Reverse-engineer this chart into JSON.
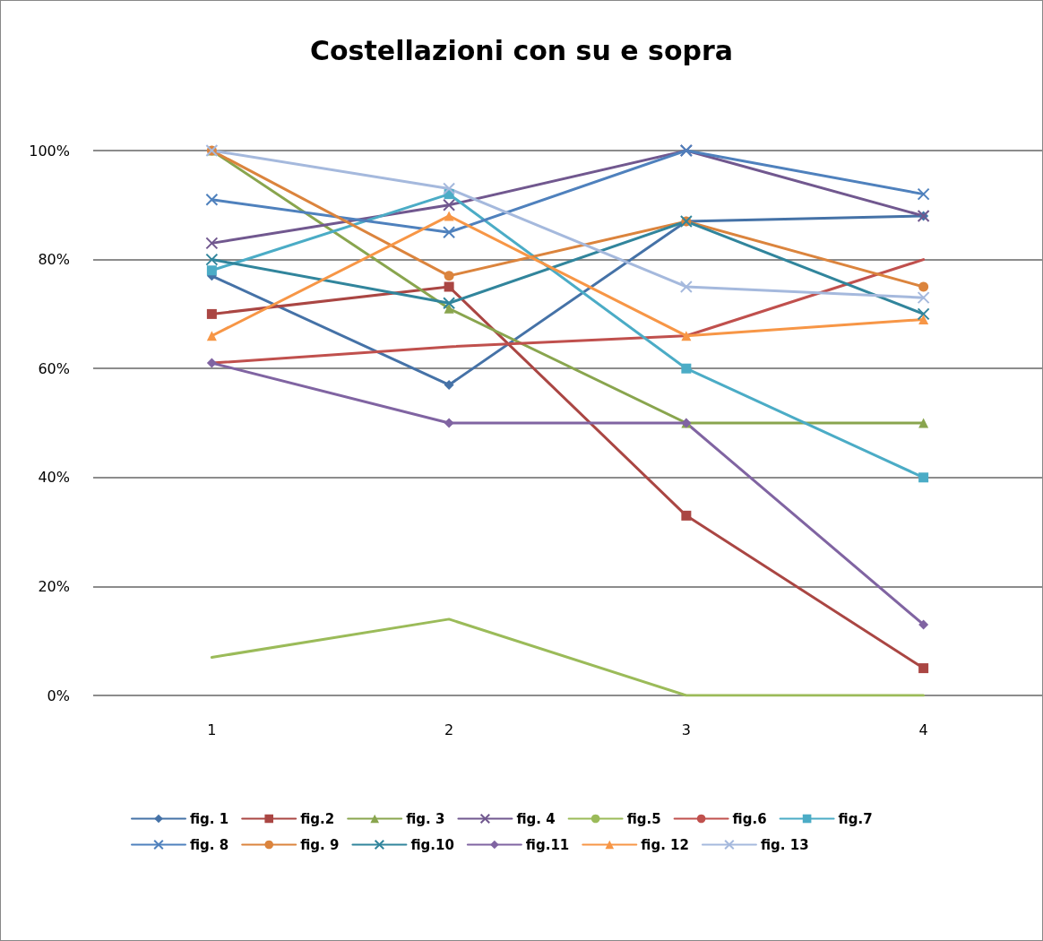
{
  "chart_data": {
    "type": "line",
    "title": "Costellazioni con su e sopra",
    "categories": [
      "1",
      "2",
      "3",
      "4"
    ],
    "ylim": [
      0,
      100
    ],
    "yticks": [
      {
        "value": 0,
        "label": "0%"
      },
      {
        "value": 20,
        "label": "20%"
      },
      {
        "value": 40,
        "label": "40%"
      },
      {
        "value": 60,
        "label": "60%"
      },
      {
        "value": 80,
        "label": "80%"
      },
      {
        "value": 100,
        "label": "100%"
      }
    ],
    "grid": "y",
    "legend": "bottom",
    "line_style": "solid",
    "series": [
      {
        "name": "fig. 1",
        "color": "#4572a7",
        "marker": "diamond",
        "values": [
          77,
          57,
          87,
          88
        ]
      },
      {
        "name": "fig.2",
        "color": "#aa4643",
        "marker": "square",
        "values": [
          70,
          75,
          33,
          5
        ]
      },
      {
        "name": "fig. 3",
        "color": "#89a54e",
        "marker": "triangle",
        "values": [
          100,
          71,
          50,
          50
        ]
      },
      {
        "name": "fig. 4",
        "color": "#71588f",
        "marker": "cross",
        "values": [
          83,
          90,
          100,
          88
        ]
      },
      {
        "name": "fig.5",
        "color": "#9bbb59",
        "marker": "none",
        "values": [
          7,
          14,
          0,
          0
        ]
      },
      {
        "name": "fig.6",
        "color": "#c0504d",
        "marker": "none",
        "values": [
          61,
          64,
          66,
          80
        ]
      },
      {
        "name": "fig.7",
        "color": "#4bacc6",
        "marker": "square",
        "values": [
          78,
          92,
          60,
          40
        ]
      },
      {
        "name": "fig. 8",
        "color": "#4f81bd",
        "marker": "cross",
        "values": [
          91,
          85,
          100,
          92
        ]
      },
      {
        "name": "fig. 9",
        "color": "#db843d",
        "marker": "circle",
        "values": [
          100,
          77,
          87,
          75
        ]
      },
      {
        "name": "fig.10",
        "color": "#31859c",
        "marker": "cross",
        "values": [
          80,
          72,
          87,
          70
        ]
      },
      {
        "name": "fig.11",
        "color": "#8064a2",
        "marker": "diamond",
        "values": [
          61,
          50,
          50,
          13
        ]
      },
      {
        "name": "fig. 12",
        "color": "#f79646",
        "marker": "triangle",
        "values": [
          66,
          88,
          66,
          69
        ]
      },
      {
        "name": "fig. 13",
        "color": "#a5b9dd",
        "marker": "cross",
        "values": [
          100,
          93,
          75,
          73
        ]
      }
    ]
  }
}
